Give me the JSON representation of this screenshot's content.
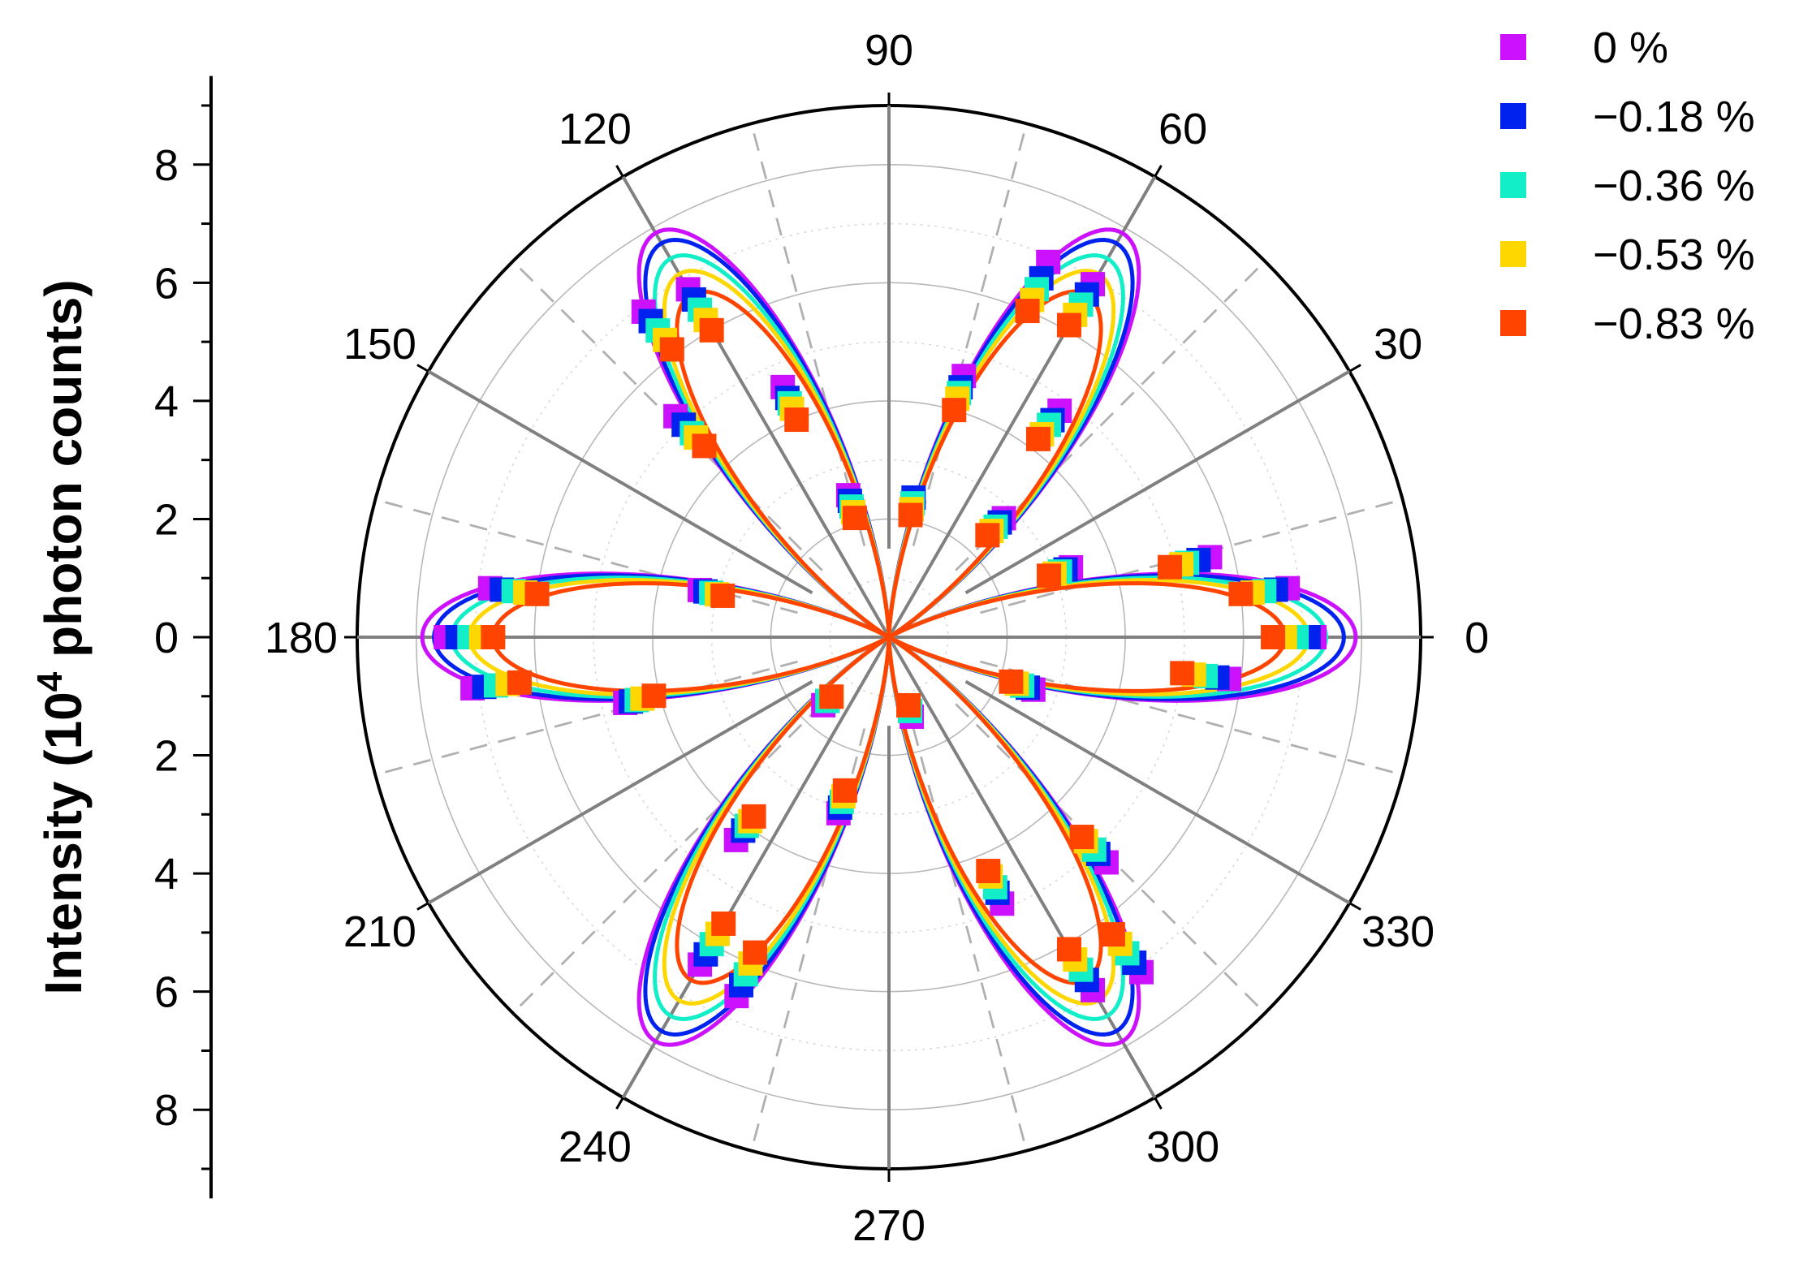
{
  "chart_data": {
    "type": "polar",
    "ylabel_parts": [
      "Intensity (",
      "10",
      "4",
      " photon counts)"
    ],
    "r_range": [
      0,
      9
    ],
    "r_ticks": [
      "0",
      "2",
      "4",
      "6",
      "8"
    ],
    "angle_ticks": [
      "0",
      "30",
      "60",
      "90",
      "120",
      "150",
      "180",
      "210",
      "240",
      "270",
      "300",
      "330"
    ],
    "grid": true,
    "legend_position": "top-right",
    "lobe_angles_deg": [
      0,
      60,
      120,
      180,
      240,
      300
    ],
    "series": [
      {
        "name": "0 %",
        "color": "#CC11FF",
        "peak": 7.9,
        "angles_deg": [
          0,
          7,
          14,
          21,
          46,
          53,
          60,
          67,
          74,
          80,
          106,
          113,
          120,
          127,
          134,
          166,
          173,
          180,
          187,
          194,
          226,
          233,
          240,
          247,
          254,
          286,
          293,
          300,
          307,
          314,
          340,
          353
        ],
        "values": [
          7.2,
          6.8,
          5.6,
          3.3,
          2.8,
          4.8,
          6.9,
          6.9,
          4.6,
          2.2,
          2.5,
          4.6,
          6.8,
          6.9,
          5.2,
          3.3,
          6.8,
          7.5,
          7.1,
          4.6,
          1.6,
          4.3,
          6.4,
          6.6,
          3.1,
          1.4,
          4.9,
          6.9,
          7.1,
          5.3,
          2.6,
          5.8
        ]
      },
      {
        "name": "−0.18 %",
        "color": "#0022EE",
        "peak": 7.7,
        "angles_deg": [
          0,
          7,
          14,
          21,
          46,
          53,
          60,
          67,
          74,
          80,
          106,
          113,
          120,
          127,
          134,
          166,
          173,
          180,
          187,
          194,
          226,
          233,
          240,
          247,
          254,
          286,
          293,
          300,
          307,
          314,
          340,
          353
        ],
        "values": [
          7.1,
          6.6,
          5.4,
          3.2,
          2.7,
          4.6,
          6.7,
          6.6,
          4.4,
          2.4,
          2.4,
          4.4,
          6.6,
          6.7,
          5.0,
          3.2,
          6.6,
          7.3,
          6.9,
          4.5,
          1.5,
          4.1,
          6.2,
          6.4,
          3.0,
          1.3,
          4.7,
          6.7,
          6.9,
          5.1,
          2.5,
          5.6
        ]
      },
      {
        "name": "−0.36 %",
        "color": "#11EEC8",
        "peak": 7.4,
        "angles_deg": [
          0,
          7,
          14,
          21,
          46,
          53,
          60,
          67,
          74,
          80,
          106,
          113,
          120,
          127,
          134,
          166,
          173,
          180,
          187,
          194,
          226,
          233,
          240,
          247,
          254,
          286,
          293,
          300,
          307,
          314,
          340,
          353
        ],
        "values": [
          6.9,
          6.4,
          5.2,
          3.1,
          2.6,
          4.5,
          6.5,
          6.4,
          4.3,
          2.3,
          2.3,
          4.3,
          6.4,
          6.5,
          4.8,
          3.1,
          6.4,
          7.1,
          6.7,
          4.4,
          1.5,
          4.0,
          6.0,
          6.2,
          2.9,
          1.3,
          4.6,
          6.5,
          6.7,
          5.0,
          2.4,
          5.4
        ]
      },
      {
        "name": "−0.53 %",
        "color": "#FFD700",
        "peak": 7.1,
        "angles_deg": [
          0,
          7,
          14,
          21,
          46,
          53,
          60,
          67,
          74,
          80,
          106,
          113,
          120,
          127,
          134,
          166,
          173,
          180,
          187,
          194,
          226,
          233,
          240,
          247,
          254,
          286,
          293,
          300,
          307,
          314,
          340,
          353
        ],
        "values": [
          6.7,
          6.2,
          5.1,
          3.0,
          2.5,
          4.3,
          6.3,
          6.2,
          4.2,
          2.2,
          2.2,
          4.2,
          6.2,
          6.3,
          4.7,
          3.0,
          6.2,
          6.9,
          6.5,
          4.3,
          1.4,
          3.9,
          5.8,
          6.0,
          2.8,
          1.2,
          4.4,
          6.3,
          6.5,
          4.8,
          2.3,
          5.2
        ]
      },
      {
        "name": "−0.83 %",
        "color": "#FF4400",
        "peak": 6.7,
        "angles_deg": [
          0,
          7,
          14,
          21,
          46,
          53,
          60,
          67,
          74,
          80,
          106,
          113,
          120,
          127,
          134,
          166,
          173,
          180,
          187,
          194,
          226,
          233,
          240,
          247,
          254,
          286,
          293,
          300,
          307,
          314,
          340,
          353
        ],
        "values": [
          6.5,
          6.0,
          4.9,
          2.9,
          2.4,
          4.2,
          6.1,
          6.0,
          4.0,
          2.1,
          2.1,
          4.0,
          6.0,
          6.1,
          4.5,
          2.9,
          6.0,
          6.7,
          6.3,
          4.1,
          1.4,
          3.8,
          5.6,
          5.8,
          2.7,
          1.2,
          4.3,
          6.1,
          6.3,
          4.7,
          2.2,
          5.0
        ]
      }
    ]
  }
}
